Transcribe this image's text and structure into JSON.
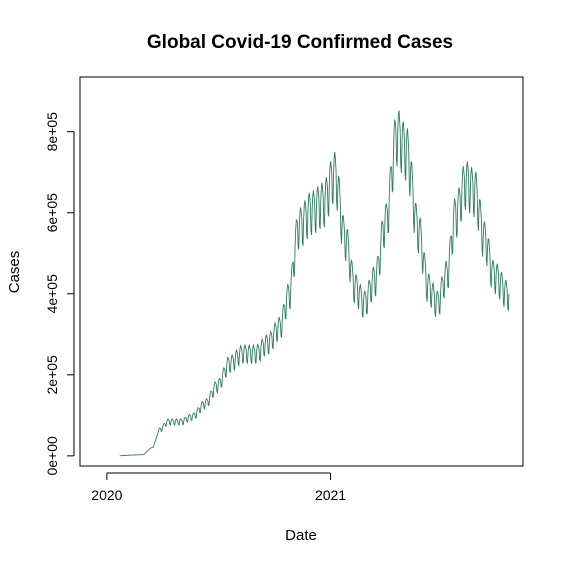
{
  "chart_data": {
    "type": "line",
    "title": "Global Covid-19 Confirmed Cases",
    "xlabel": "Date",
    "ylabel": "Cases",
    "x_ticks": [
      {
        "date": "2020-01-01",
        "label": "2020"
      },
      {
        "date": "2021-01-01",
        "label": "2021"
      }
    ],
    "y_ticks": [
      {
        "value": 0,
        "label": "0e+00"
      },
      {
        "value": 200000,
        "label": "2e+05"
      },
      {
        "value": 400000,
        "label": "4e+05"
      },
      {
        "value": 600000,
        "label": "6e+05"
      },
      {
        "value": 800000,
        "label": "8e+05"
      }
    ],
    "xlim": [
      "2019-11-18",
      "2021-11-12"
    ],
    "ylim": [
      -25000,
      935000
    ],
    "grid": false,
    "line_color": "#2e7d5e",
    "series": [
      {
        "frequency": "daily",
        "start": "2020-01-22",
        "end": "2021-10-20",
        "anchors": [
          {
            "date": "2020-01-22",
            "value": 500
          },
          {
            "date": "2020-02-12",
            "value": 2000
          },
          {
            "date": "2020-02-28",
            "value": 3000
          },
          {
            "date": "2020-03-15",
            "value": 20000
          },
          {
            "date": "2020-03-28",
            "value": 65000
          },
          {
            "date": "2020-04-10",
            "value": 85000
          },
          {
            "date": "2020-05-01",
            "value": 85000
          },
          {
            "date": "2020-05-20",
            "value": 98000
          },
          {
            "date": "2020-06-10",
            "value": 130000
          },
          {
            "date": "2020-06-30",
            "value": 175000
          },
          {
            "date": "2020-07-20",
            "value": 230000
          },
          {
            "date": "2020-08-10",
            "value": 255000
          },
          {
            "date": "2020-09-01",
            "value": 255000
          },
          {
            "date": "2020-09-20",
            "value": 280000
          },
          {
            "date": "2020-10-10",
            "value": 320000
          },
          {
            "date": "2020-10-25",
            "value": 400000
          },
          {
            "date": "2020-11-10",
            "value": 570000
          },
          {
            "date": "2020-12-01",
            "value": 610000
          },
          {
            "date": "2020-12-20",
            "value": 630000
          },
          {
            "date": "2021-01-08",
            "value": 700000
          },
          {
            "date": "2021-01-25",
            "value": 540000
          },
          {
            "date": "2021-02-10",
            "value": 420000
          },
          {
            "date": "2021-02-25",
            "value": 380000
          },
          {
            "date": "2021-03-15",
            "value": 440000
          },
          {
            "date": "2021-04-01",
            "value": 580000
          },
          {
            "date": "2021-04-20",
            "value": 800000
          },
          {
            "date": "2021-05-05",
            "value": 760000
          },
          {
            "date": "2021-05-25",
            "value": 560000
          },
          {
            "date": "2021-06-10",
            "value": 420000
          },
          {
            "date": "2021-06-25",
            "value": 380000
          },
          {
            "date": "2021-07-10",
            "value": 450000
          },
          {
            "date": "2021-07-25",
            "value": 600000
          },
          {
            "date": "2021-08-10",
            "value": 680000
          },
          {
            "date": "2021-08-25",
            "value": 660000
          },
          {
            "date": "2021-09-10",
            "value": 540000
          },
          {
            "date": "2021-09-25",
            "value": 450000
          },
          {
            "date": "2021-10-20",
            "value": 400000
          }
        ],
        "weekly_variation": 0.22
      }
    ]
  }
}
